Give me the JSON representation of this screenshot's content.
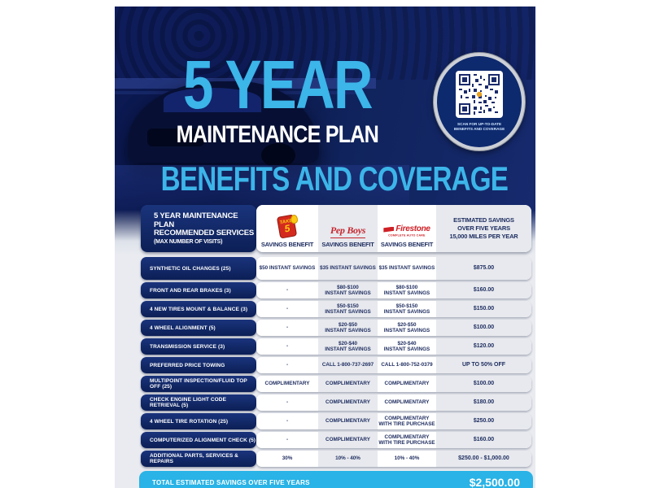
{
  "header": {
    "title_top": "5 YEAR",
    "title_bottom": "MAINTENANCE PLAN",
    "banner": "BENEFITS AND COVERAGE",
    "qr_caption": "SCAN FOR UP-TO-DATE\nBENEFITS AND COVERAGE"
  },
  "logos": {
    "take5": {
      "word": "TAKE",
      "number": "5"
    },
    "pepboys": {
      "name": "Pep Boys"
    },
    "firestone": {
      "name": "Firestone",
      "tagline": "COMPLETE AUTO CARE"
    }
  },
  "table": {
    "header": {
      "services_title": "5 YEAR MAINTENANCE PLAN\nRECOMMENDED SERVICES",
      "services_subtitle": "(MAX NUMBER OF VISITS)",
      "take5_label": "SAVINGS BENEFIT",
      "pepboys_label": "SAVINGS BENEFIT",
      "firestone_label": "SAVINGS BENEFIT",
      "estimated_label": "ESTIMATED SAVINGS\nOVER FIVE YEARS\n15,000 MILES PER YEAR"
    },
    "rows": [
      {
        "service": "SYNTHETIC OIL CHANGES (25)",
        "take5": "$50 INSTANT SAVINGS",
        "pepboys": "$35 INSTANT SAVINGS",
        "firestone": "$35 INSTANT SAVINGS",
        "estimated": "$875.00"
      },
      {
        "service": "FRONT AND REAR BRAKES (3)",
        "take5": "-",
        "pepboys": "$80-$100\nINSTANT SAVINGS",
        "firestone": "$80-$100\nINSTANT SAVINGS",
        "estimated": "$160.00"
      },
      {
        "service": "4 NEW TIRES MOUNT & BALANCE (3)",
        "take5": "-",
        "pepboys": "$50-$150\nINSTANT SAVINGS",
        "firestone": "$50-$150\nINSTANT SAVINGS",
        "estimated": "$150.00"
      },
      {
        "service": "4 WHEEL ALIGNMENT (5)",
        "take5": "-",
        "pepboys": "$20-$50\nINSTANT SAVINGS",
        "firestone": "$20-$50\nINSTANT SAVINGS",
        "estimated": "$100.00"
      },
      {
        "service": "TRANSMISSION SERVICE (3)",
        "take5": "-",
        "pepboys": "$20-$40\nINSTANT SAVINGS",
        "firestone": "$20-$40\nINSTANT SAVINGS",
        "estimated": "$120.00"
      },
      {
        "service": "PREFERRED PRICE TOWING",
        "take5": "-",
        "pepboys": "CALL 1-800-737-2697",
        "firestone": "CALL 1-800-752-0379",
        "estimated": "UP TO 50% OFF"
      },
      {
        "service": "MULTIPOINT INSPECTION/FLUID TOP OFF (25)",
        "take5": "COMPLIMENTARY",
        "pepboys": "COMPLIMENTARY",
        "firestone": "COMPLIMENTARY",
        "estimated": "$100.00"
      },
      {
        "service": "CHECK ENGINE LIGHT CODE RETRIEVAL (5)",
        "take5": "-",
        "pepboys": "COMPLIMENTARY",
        "firestone": "COMPLIMENTARY",
        "estimated": "$180.00"
      },
      {
        "service": "4 WHEEL TIRE ROTATION (25)",
        "take5": "-",
        "pepboys": "COMPLIMENTARY",
        "firestone": "COMPLIMENTARY\nWITH TIRE PURCHASE",
        "estimated": "$250.00"
      },
      {
        "service": "COMPUTERIZED ALIGNMENT CHECK (5)",
        "take5": "-",
        "pepboys": "COMPLIMENTARY",
        "firestone": "COMPLIMENTARY\nWITH TIRE PURCHASE",
        "estimated": "$160.00"
      },
      {
        "service": "ADDITIONAL PARTS, SERVICES & REPAIRS",
        "take5": "30%",
        "pepboys": "10% - 40%",
        "firestone": "10% - 40%",
        "estimated": "$250.00 - $1,000.00"
      }
    ],
    "footer": {
      "label": "TOTAL ESTIMATED SAVINGS OVER FIVE YEARS",
      "value": "$2,500.00"
    }
  },
  "colors": {
    "accent_light_blue": "#3cb5e9",
    "total_bar_blue": "#29b3e6",
    "navy": "#0c1f56",
    "row_text_navy": "#1c2b5e",
    "band_gray": "#e7e9ee",
    "take5_red": "#d42a1e",
    "take5_yellow": "#ffc913",
    "pepboys_red": "#c6262e",
    "firestone_red": "#cf2026"
  }
}
